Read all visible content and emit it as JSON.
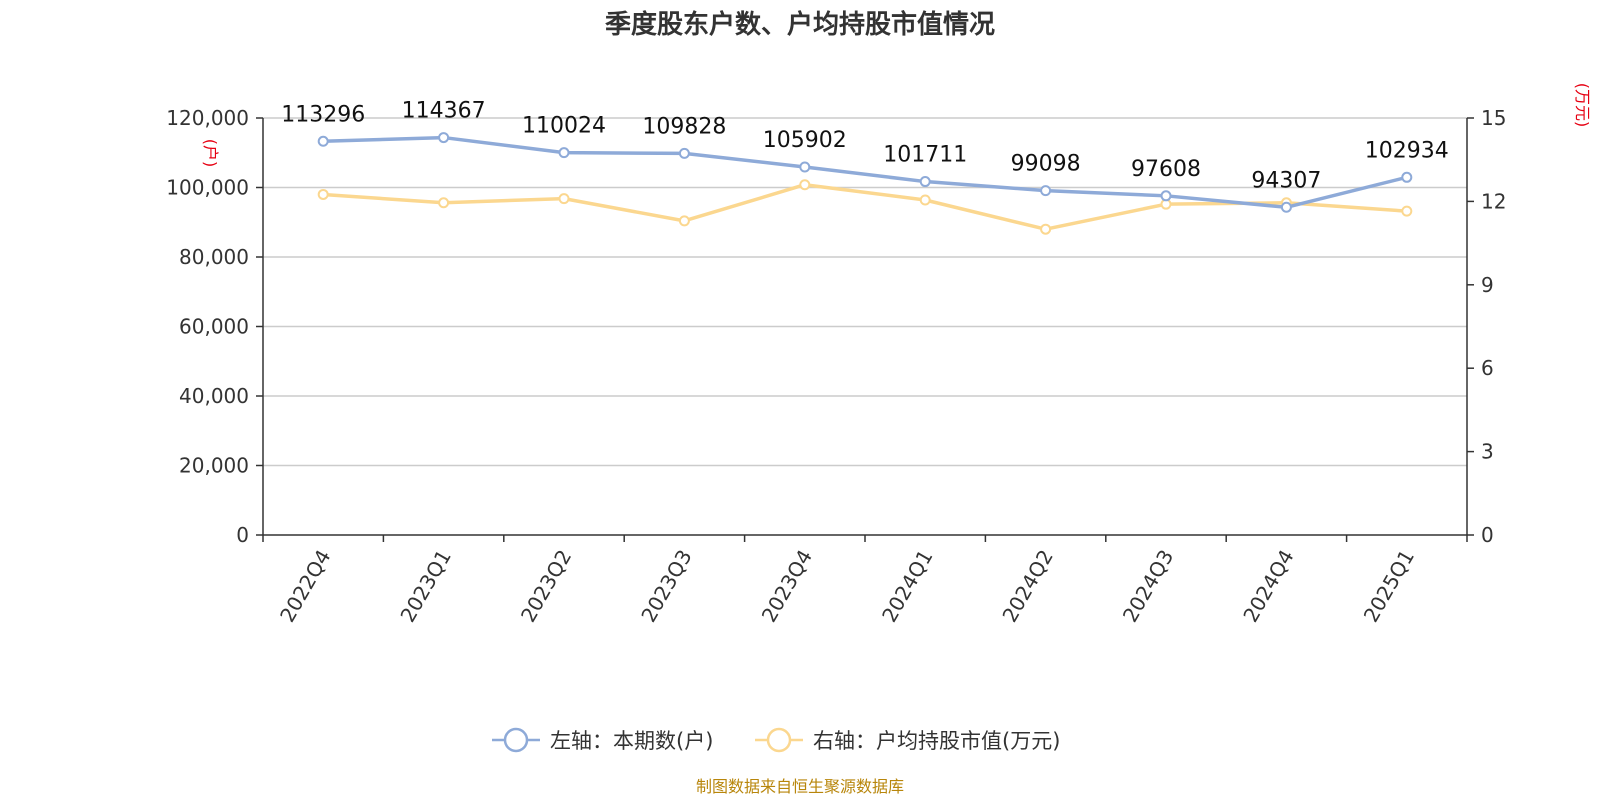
{
  "chart_data": {
    "type": "line",
    "title": "季度股东户数、户均持股市值情况",
    "categories": [
      "2022Q4",
      "2023Q1",
      "2023Q2",
      "2023Q3",
      "2023Q4",
      "2024Q1",
      "2024Q2",
      "2024Q3",
      "2024Q4",
      "2025Q1"
    ],
    "left_axis": {
      "unit_label": "(户)",
      "ylim": [
        0,
        120000
      ],
      "ticks": [
        "0",
        "20,000",
        "40,000",
        "60,000",
        "80,000",
        "100,000",
        "120,000"
      ]
    },
    "right_axis": {
      "unit_label": "(万元)",
      "ylim": [
        0,
        15
      ],
      "ticks": [
        "0",
        "3",
        "6",
        "9",
        "12",
        "15"
      ]
    },
    "series": [
      {
        "name": "左轴：本期数(户)",
        "axis": "left",
        "color": "#8eaad8",
        "values": [
          113296,
          114367,
          110024,
          109828,
          105902,
          101711,
          99098,
          97608,
          94307,
          102934
        ],
        "labels": [
          "113296",
          "114367",
          "110024",
          "109828",
          "105902",
          "101711",
          "99098",
          "97608",
          "94307",
          "102934"
        ]
      },
      {
        "name": "右轴：户均持股市值(万元)",
        "axis": "right",
        "color": "#fbd78f",
        "values": [
          12.25,
          11.95,
          12.1,
          11.3,
          12.6,
          12.05,
          11.0,
          11.9,
          11.95,
          11.65
        ]
      }
    ],
    "grid": true,
    "legend_position": "bottom-center"
  },
  "source_note": "制图数据来自恒生聚源数据库"
}
